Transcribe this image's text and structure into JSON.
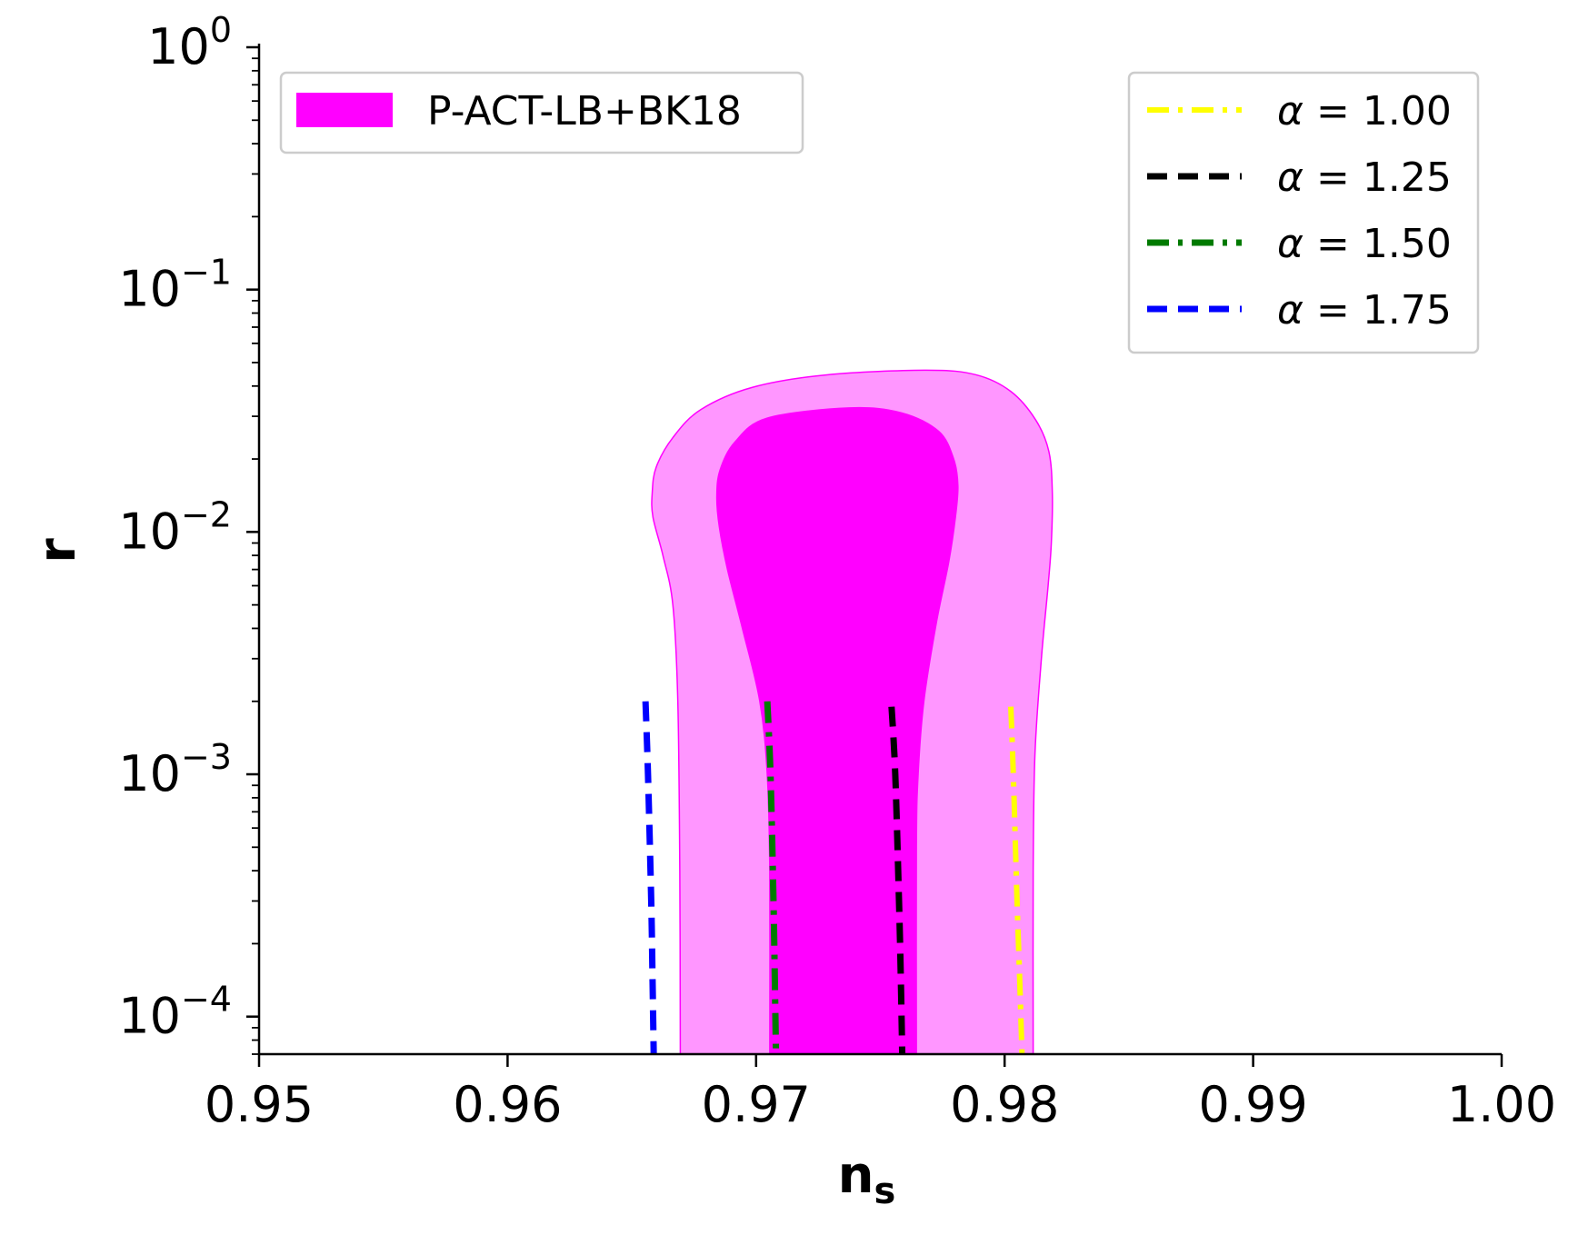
{
  "chart_data": {
    "type": "line",
    "xlabel": "n",
    "xlabel_sub": "s",
    "ylabel": "r",
    "xlim": [
      0.95,
      1.0
    ],
    "ylim": [
      7e-05,
      1.0
    ],
    "yscale": "log",
    "grid": false,
    "x_ticks": [
      0.95,
      0.96,
      0.97,
      0.98,
      0.99,
      1.0
    ],
    "x_tick_labels": [
      "0.95",
      "0.96",
      "0.97",
      "0.98",
      "0.99",
      "1.00"
    ],
    "y_ticks": [
      0.0001,
      0.001,
      0.01,
      0.1,
      1
    ],
    "y_tick_labels": [
      {
        "base": "10",
        "exp": "−4"
      },
      {
        "base": "10",
        "exp": "−3"
      },
      {
        "base": "10",
        "exp": "−2"
      },
      {
        "base": "10",
        "exp": "−1"
      },
      {
        "base": "10",
        "exp": "0"
      }
    ],
    "contour_legend": {
      "placement": "top-left",
      "label": "P-ACT-LB+BK18",
      "color": "#ff00ff"
    },
    "series_legend_placement": "top-right",
    "contours": [
      {
        "level": "2-sigma",
        "fill": "#ff96ff",
        "stroke": "#ff00ff",
        "points": [
          [
            0.96695,
            7e-05
          ],
          [
            0.96693,
            0.0004
          ],
          [
            0.96685,
            0.002
          ],
          [
            0.96665,
            0.005
          ],
          [
            0.96625,
            0.008
          ],
          [
            0.96585,
            0.0115
          ],
          [
            0.96582,
            0.0145
          ],
          [
            0.96598,
            0.0185
          ],
          [
            0.96665,
            0.0245
          ],
          [
            0.96778,
            0.032
          ],
          [
            0.96985,
            0.0395
          ],
          [
            0.97285,
            0.0445
          ],
          [
            0.97685,
            0.0465
          ],
          [
            0.97885,
            0.0445
          ],
          [
            0.98025,
            0.038
          ],
          [
            0.98125,
            0.029
          ],
          [
            0.98178,
            0.0215
          ],
          [
            0.98192,
            0.0145
          ],
          [
            0.98188,
            0.009
          ],
          [
            0.98175,
            0.006
          ],
          [
            0.98148,
            0.003
          ],
          [
            0.98122,
            0.0012
          ],
          [
            0.98115,
            0.0004
          ],
          [
            0.98115,
            7e-05
          ]
        ]
      },
      {
        "level": "1-sigma",
        "fill": "#ff00ff",
        "stroke": "#ff00ff",
        "points": [
          [
            0.97055,
            7e-05
          ],
          [
            0.97055,
            0.0004
          ],
          [
            0.97045,
            0.001
          ],
          [
            0.97015,
            0.002
          ],
          [
            0.96945,
            0.004
          ],
          [
            0.96885,
            0.007
          ],
          [
            0.96852,
            0.0105
          ],
          [
            0.96842,
            0.014
          ],
          [
            0.96855,
            0.018
          ],
          [
            0.96915,
            0.0235
          ],
          [
            0.97045,
            0.0295
          ],
          [
            0.97375,
            0.0325
          ],
          [
            0.97585,
            0.031
          ],
          [
            0.97735,
            0.026
          ],
          [
            0.97795,
            0.02
          ],
          [
            0.97812,
            0.0155
          ],
          [
            0.97802,
            0.0115
          ],
          [
            0.97775,
            0.0075
          ],
          [
            0.97725,
            0.0042
          ],
          [
            0.97675,
            0.002
          ],
          [
            0.97652,
            0.001
          ],
          [
            0.97645,
            0.0005
          ],
          [
            0.97645,
            7e-05
          ]
        ]
      }
    ],
    "series": [
      {
        "name": "α = 1.00",
        "color": "#ffff00",
        "dash": "24,10,5,10",
        "width": 6,
        "x": [
          0.98025,
          0.98035,
          0.9805,
          0.9806,
          0.9807
        ],
        "y": [
          0.0019,
          0.001,
          0.0003,
          0.00015,
          7e-05
        ]
      },
      {
        "name": "α = 1.25",
        "color": "#000000",
        "dash": "22,12",
        "width": 7,
        "x": [
          0.97545,
          0.9756,
          0.97575,
          0.97582,
          0.97588
        ],
        "y": [
          0.0019,
          0.001,
          0.0003,
          0.00015,
          7e-05
        ]
      },
      {
        "name": "α = 1.50",
        "color": "#007a00",
        "dash": "24,10,5,10",
        "width": 7,
        "x": [
          0.97045,
          0.97058,
          0.9707,
          0.97075,
          0.9708
        ],
        "y": [
          0.002,
          0.001,
          0.0003,
          0.00015,
          7e-05
        ]
      },
      {
        "name": "α = 1.75",
        "color": "#0000ff",
        "dash": "22,12",
        "width": 7,
        "x": [
          0.96555,
          0.96565,
          0.96578,
          0.96583,
          0.96588
        ],
        "y": [
          0.002,
          0.001,
          0.0003,
          0.00015,
          7e-05
        ]
      }
    ],
    "legend_label_prefix": "α",
    "legend_label_values": [
      "1.00",
      "1.25",
      "1.50",
      "1.75"
    ]
  }
}
